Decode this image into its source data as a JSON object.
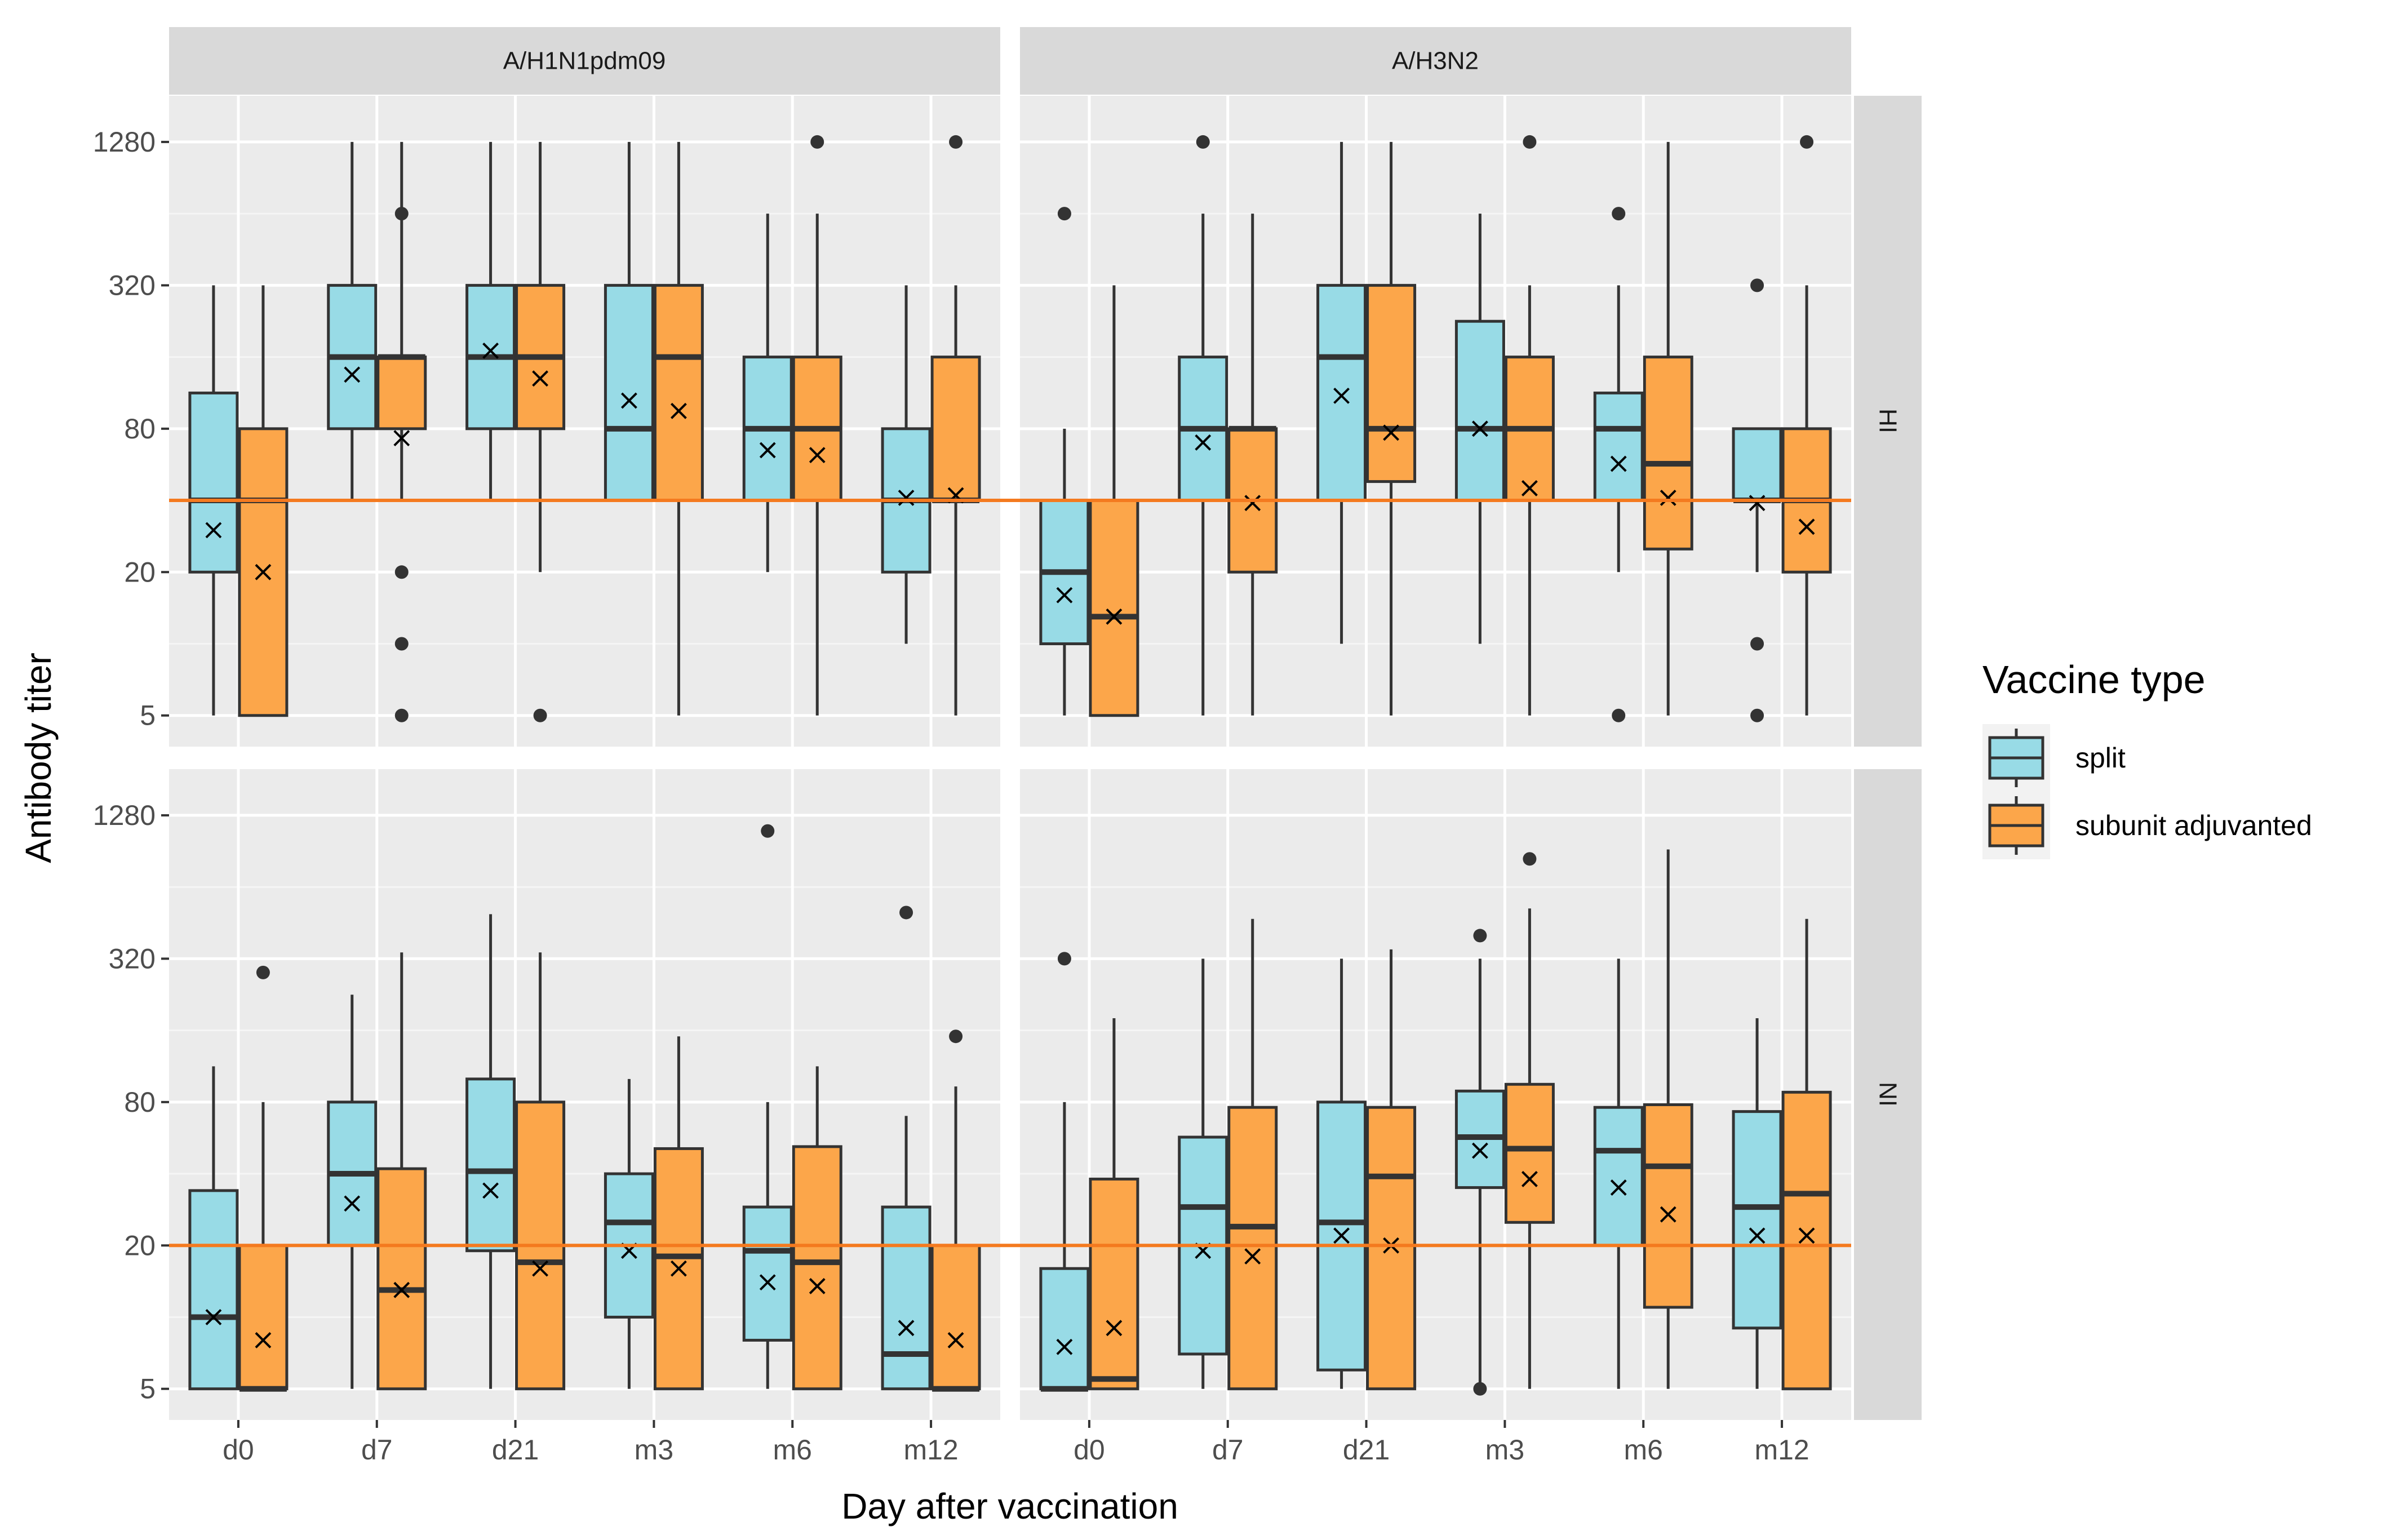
{
  "colors": {
    "panel_bg": "#ebebeb",
    "strip_bg": "#d9d9d9",
    "grid_major": "#ffffff",
    "grid_minor": "#f5f5f5",
    "split": "#98dbe6",
    "subunit_adjuvanted": "#fca64a",
    "box_line": "#333333",
    "ref_line": "#f47a1f"
  },
  "chart_data": {
    "type": "boxplot",
    "facets": {
      "columns": [
        "A/H1N1pdm09",
        "A/H3N2"
      ],
      "rows": [
        "HI",
        "NI"
      ]
    },
    "categories": [
      "d0",
      "d7",
      "d21",
      "m3",
      "m6",
      "m12"
    ],
    "xlabel": "Day after vaccination",
    "ylabel": "Antibody titer",
    "y_scale": "log2",
    "y_ticks": [
      5,
      20,
      80,
      320,
      1280
    ],
    "y_tick_labels": [
      "5",
      "20",
      "80",
      "320",
      "1280"
    ],
    "ylim": [
      3.7,
      2000
    ],
    "legend": {
      "title": "Vaccine type",
      "entries": [
        "split",
        "subunit adjuvanted"
      ],
      "position": "right"
    },
    "reference_lines": [
      {
        "row": "HI",
        "y": 40
      },
      {
        "row": "NI",
        "y": 20
      }
    ],
    "series": [
      {
        "name": "split",
        "panels": [
          {
            "column": "A/H1N1pdm09",
            "row": "HI",
            "boxes": [
              {
                "low": 5,
                "q1": 20,
                "median": 40,
                "q3": 113,
                "high": 320,
                "mean": 30,
                "outliers": []
              },
              {
                "low": 40,
                "q1": 80,
                "median": 160,
                "q3": 320,
                "high": 1280,
                "mean": 135,
                "outliers": []
              },
              {
                "low": 40,
                "q1": 80,
                "median": 160,
                "q3": 320,
                "high": 1280,
                "mean": 170,
                "outliers": []
              },
              {
                "low": 40,
                "q1": 40,
                "median": 80,
                "q3": 320,
                "high": 1280,
                "mean": 105,
                "outliers": []
              },
              {
                "low": 20,
                "q1": 40,
                "median": 80,
                "q3": 160,
                "high": 640,
                "mean": 65,
                "outliers": []
              },
              {
                "low": 10,
                "q1": 20,
                "median": 40,
                "q3": 80,
                "high": 320,
                "mean": 41,
                "outliers": []
              }
            ]
          },
          {
            "column": "A/H3N2",
            "row": "HI",
            "boxes": [
              {
                "low": 5,
                "q1": 10,
                "median": 20,
                "q3": 40,
                "high": 80,
                "mean": 16,
                "outliers": [
                  640
                ]
              },
              {
                "low": 5,
                "q1": 40,
                "median": 80,
                "q3": 160,
                "high": 640,
                "mean": 70,
                "outliers": [
                  1280
                ]
              },
              {
                "low": 10,
                "q1": 40,
                "median": 160,
                "q3": 320,
                "high": 1280,
                "mean": 110,
                "outliers": []
              },
              {
                "low": 10,
                "q1": 40,
                "median": 80,
                "q3": 226,
                "high": 640,
                "mean": 80,
                "outliers": []
              },
              {
                "low": 20,
                "q1": 40,
                "median": 80,
                "q3": 113,
                "high": 320,
                "mean": 57,
                "outliers": [
                  5,
                  640
                ]
              },
              {
                "low": 20,
                "q1": 40,
                "median": 40,
                "q3": 80,
                "high": 80,
                "mean": 39,
                "outliers": [
                  5,
                  10,
                  320
                ]
              }
            ]
          },
          {
            "column": "A/H1N1pdm09",
            "row": "NI",
            "boxes": [
              {
                "low": 5,
                "q1": 5,
                "median": 10,
                "q3": 34,
                "high": 113,
                "mean": 10,
                "outliers": []
              },
              {
                "low": 5,
                "q1": 20,
                "median": 40,
                "q3": 80,
                "high": 226,
                "mean": 30,
                "outliers": []
              },
              {
                "low": 5,
                "q1": 19,
                "median": 41,
                "q3": 100,
                "high": 492,
                "mean": 34,
                "outliers": []
              },
              {
                "low": 5,
                "q1": 10,
                "median": 25,
                "q3": 40,
                "high": 100,
                "mean": 19,
                "outliers": []
              },
              {
                "low": 5,
                "q1": 8,
                "median": 19,
                "q3": 29,
                "high": 80,
                "mean": 14,
                "outliers": [
                  1100
                ]
              },
              {
                "low": 5,
                "q1": 5,
                "median": 7,
                "q3": 29,
                "high": 70,
                "mean": 9,
                "outliers": [
                  500
                ]
              }
            ]
          },
          {
            "column": "A/H3N2",
            "row": "NI",
            "boxes": [
              {
                "low": 5,
                "q1": 5,
                "median": 5,
                "q3": 16,
                "high": 80,
                "mean": 7.5,
                "outliers": [
                  320
                ]
              },
              {
                "low": 5,
                "q1": 7,
                "median": 29,
                "q3": 57,
                "high": 320,
                "mean": 19,
                "outliers": []
              },
              {
                "low": 5,
                "q1": 6,
                "median": 25,
                "q3": 80,
                "high": 320,
                "mean": 22,
                "outliers": []
              },
              {
                "low": 5,
                "q1": 35,
                "median": 57,
                "q3": 89,
                "high": 320,
                "mean": 50,
                "outliers": [
                  5,
                  400
                ]
              },
              {
                "low": 5,
                "q1": 20,
                "median": 50,
                "q3": 76,
                "high": 320,
                "mean": 35,
                "outliers": []
              },
              {
                "low": 5,
                "q1": 9,
                "median": 29,
                "q3": 73,
                "high": 180,
                "mean": 22,
                "outliers": []
              }
            ]
          }
        ]
      },
      {
        "name": "subunit adjuvanted",
        "panels": [
          {
            "column": "A/H1N1pdm09",
            "row": "HI",
            "boxes": [
              {
                "low": 5,
                "q1": 5,
                "median": 40,
                "q3": 80,
                "high": 320,
                "mean": 20,
                "outliers": []
              },
              {
                "low": 40,
                "q1": 80,
                "median": 160,
                "q3": 160,
                "high": 1280,
                "mean": 73,
                "outliers": [
                  5,
                  10,
                  20,
                  640
                ]
              },
              {
                "low": 20,
                "q1": 80,
                "median": 160,
                "q3": 320,
                "high": 1280,
                "mean": 130,
                "outliers": [
                  5
                ]
              },
              {
                "low": 5,
                "q1": 40,
                "median": 160,
                "q3": 320,
                "high": 1280,
                "mean": 95,
                "outliers": []
              },
              {
                "low": 5,
                "q1": 40,
                "median": 80,
                "q3": 160,
                "high": 640,
                "mean": 62,
                "outliers": [
                  1280
                ]
              },
              {
                "low": 5,
                "q1": 40,
                "median": 40,
                "q3": 160,
                "high": 320,
                "mean": 42,
                "outliers": [
                  1280
                ]
              }
            ]
          },
          {
            "column": "A/H3N2",
            "row": "HI",
            "boxes": [
              {
                "low": 5,
                "q1": 5,
                "median": 13,
                "q3": 40,
                "high": 320,
                "mean": 13,
                "outliers": []
              },
              {
                "low": 5,
                "q1": 20,
                "median": 80,
                "q3": 80,
                "high": 640,
                "mean": 39,
                "outliers": []
              },
              {
                "low": 5,
                "q1": 48,
                "median": 80,
                "q3": 320,
                "high": 1280,
                "mean": 77,
                "outliers": []
              },
              {
                "low": 5,
                "q1": 40,
                "median": 80,
                "q3": 160,
                "high": 320,
                "mean": 45,
                "outliers": [
                  1280
                ]
              },
              {
                "low": 5,
                "q1": 25,
                "median": 57,
                "q3": 160,
                "high": 1280,
                "mean": 41,
                "outliers": []
              },
              {
                "low": 5,
                "q1": 20,
                "median": 40,
                "q3": 80,
                "high": 320,
                "mean": 31,
                "outliers": [
                  1280
                ]
              }
            ]
          },
          {
            "column": "A/H1N1pdm09",
            "row": "NI",
            "boxes": [
              {
                "low": 5,
                "q1": 5,
                "median": 5,
                "q3": 20,
                "high": 80,
                "mean": 8,
                "outliers": [
                  280
                ]
              },
              {
                "low": 5,
                "q1": 5,
                "median": 13,
                "q3": 42,
                "high": 340,
                "mean": 13,
                "outliers": []
              },
              {
                "low": 5,
                "q1": 5,
                "median": 17,
                "q3": 80,
                "high": 340,
                "mean": 16,
                "outliers": []
              },
              {
                "low": 5,
                "q1": 5,
                "median": 18,
                "q3": 51,
                "high": 151,
                "mean": 16,
                "outliers": []
              },
              {
                "low": 5,
                "q1": 5,
                "median": 17,
                "q3": 52,
                "high": 113,
                "mean": 13.5,
                "outliers": []
              },
              {
                "low": 5,
                "q1": 5,
                "median": 5,
                "q3": 20,
                "high": 93,
                "mean": 8,
                "outliers": [
                  151
                ]
              }
            ]
          },
          {
            "column": "A/H3N2",
            "row": "NI",
            "boxes": [
              {
                "low": 5,
                "q1": 5,
                "median": 5.5,
                "q3": 38,
                "high": 180,
                "mean": 9,
                "outliers": []
              },
              {
                "low": 5,
                "q1": 5,
                "median": 24,
                "q3": 76,
                "high": 470,
                "mean": 18,
                "outliers": []
              },
              {
                "low": 5,
                "q1": 5,
                "median": 39,
                "q3": 76,
                "high": 350,
                "mean": 20,
                "outliers": []
              },
              {
                "low": 5,
                "q1": 25,
                "median": 51,
                "q3": 95,
                "high": 520,
                "mean": 38,
                "outliers": [
                  840
                ]
              },
              {
                "low": 5,
                "q1": 11,
                "median": 43,
                "q3": 78,
                "high": 920,
                "mean": 27,
                "outliers": []
              },
              {
                "low": 5,
                "q1": 5,
                "median": 33,
                "q3": 88,
                "high": 470,
                "mean": 22,
                "outliers": []
              }
            ]
          }
        ]
      }
    ]
  }
}
